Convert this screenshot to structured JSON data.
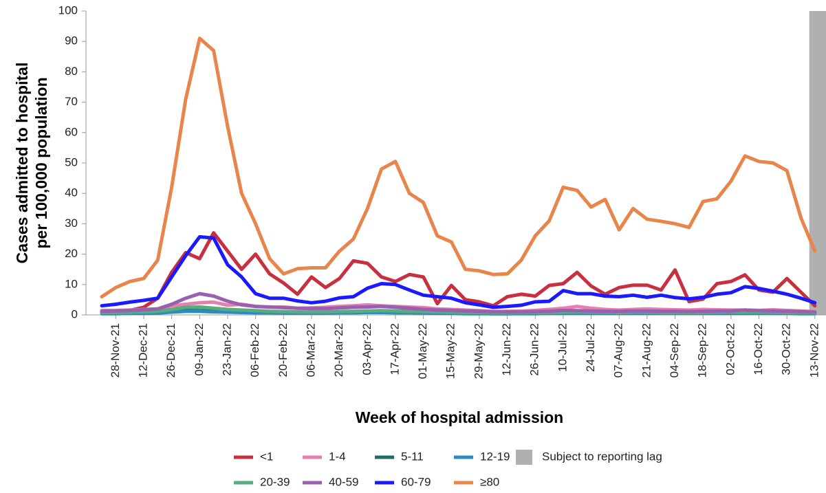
{
  "chart_data": {
    "type": "line",
    "y_label": [
      "Cases admitted to hospital",
      "per 100,000 population"
    ],
    "x_label": "Week of hospital admission",
    "categories": [
      null,
      "28-Nov-21",
      null,
      "12-Dec-21",
      null,
      "26-Dec-21",
      null,
      "09-Jan-22",
      null,
      "23-Jan-22",
      null,
      "06-Feb-22",
      null,
      "20-Feb-22",
      null,
      "06-Mar-22",
      null,
      "20-Mar-22",
      null,
      "03-Apr-22",
      null,
      "17-Apr-22",
      null,
      "01-May-22",
      null,
      "15-May-22",
      null,
      "29-May-22",
      null,
      "12-Jun-22",
      null,
      "26-Jun-22",
      null,
      "10-Jul-22",
      null,
      "24-Jul-22",
      null,
      "07-Aug-22",
      null,
      "21-Aug-22",
      null,
      "04-Sep-22",
      null,
      "18-Sep-22",
      null,
      "02-Oct-22",
      null,
      "16-Oct-22",
      null,
      "30-Oct-22",
      null,
      "13-Nov-22"
    ],
    "ylim": [
      0,
      100
    ],
    "yticks": [
      0,
      10,
      20,
      30,
      40,
      50,
      60,
      70,
      80,
      90,
      100
    ],
    "grid": false,
    "legend": "bottom",
    "shade": {
      "label": "Subject to reporting lag",
      "color": "#b0b0b0"
    },
    "series": [
      {
        "name": "<1",
        "color": "#c8303f",
        "values": [
          1,
          1,
          1.5,
          2.5,
          5.5,
          14,
          20.5,
          18.5,
          27,
          21,
          15,
          20,
          13.5,
          10.5,
          6.8,
          12.5,
          9,
          12,
          17.8,
          17,
          12.5,
          11,
          13.3,
          12.5,
          3.7,
          9.7,
          5,
          4.3,
          3,
          6,
          6.8,
          6.2,
          9.7,
          10.3,
          14,
          9.5,
          6.8,
          9,
          9.8,
          9.8,
          8.2,
          14.8,
          4.4,
          5.2,
          10.3,
          11,
          13.2,
          8.2,
          7.5,
          12,
          7.5,
          3
        ]
      },
      {
        "name": "1-4",
        "color": "#e57fb0",
        "values": [
          1.5,
          1.5,
          1.6,
          1.8,
          2,
          3,
          3.5,
          4,
          4.2,
          3.2,
          3.5,
          2.8,
          2.5,
          2.6,
          2.2,
          2.3,
          2.5,
          2.8,
          3,
          3.3,
          3,
          2.8,
          2.6,
          2.4,
          2,
          1.8,
          1.6,
          1.4,
          1.2,
          1.2,
          1.3,
          1.5,
          1.8,
          2.2,
          2.8,
          2.2,
          1.8,
          1.6,
          1.8,
          2,
          1.8,
          1.7,
          1.6,
          1.8,
          1.7,
          1.6,
          1.6,
          1.5,
          1.7,
          1.5,
          1.3,
          1.1
        ]
      },
      {
        "name": "5-11",
        "color": "#1f6b6b",
        "values": [
          0.5,
          0.5,
          0.6,
          0.6,
          0.7,
          1,
          1.5,
          1.4,
          1.2,
          1,
          1,
          0.9,
          0.8,
          0.8,
          0.7,
          0.7,
          0.8,
          0.8,
          0.9,
          1,
          1,
          1,
          0.8,
          0.7,
          0.6,
          0.6,
          0.5,
          0.5,
          0.4,
          0.4,
          0.5,
          0.5,
          0.6,
          0.6,
          0.7,
          0.6,
          0.6,
          0.6,
          0.6,
          0.6,
          0.6,
          0.6,
          0.6,
          0.6,
          0.6,
          0.6,
          0.6,
          0.6,
          0.6,
          0.6,
          0.5,
          0.5
        ]
      },
      {
        "name": "12-19",
        "color": "#2b8cbe",
        "values": [
          0.4,
          0.4,
          0.5,
          0.5,
          0.6,
          0.9,
          1.2,
          1.2,
          1,
          0.9,
          0.8,
          0.7,
          0.7,
          0.6,
          0.6,
          0.6,
          0.6,
          0.7,
          0.7,
          0.8,
          0.8,
          0.7,
          0.7,
          0.6,
          0.5,
          0.5,
          0.4,
          0.4,
          0.4,
          0.4,
          0.4,
          0.4,
          0.5,
          0.5,
          0.5,
          0.5,
          0.5,
          0.5,
          0.5,
          0.5,
          0.5,
          0.5,
          0.5,
          0.5,
          0.5,
          0.5,
          0.5,
          0.5,
          0.5,
          0.5,
          0.4,
          0.4
        ]
      },
      {
        "name": "20-39",
        "color": "#5aab7f",
        "values": [
          0.8,
          0.8,
          0.9,
          1,
          1.2,
          1.8,
          2.5,
          2.6,
          2.2,
          1.8,
          1.6,
          1.4,
          1.2,
          1.1,
          1,
          1,
          1,
          1.1,
          1.2,
          1.3,
          1.4,
          1.3,
          1.2,
          1.1,
          1,
          0.9,
          0.8,
          0.8,
          0.7,
          0.7,
          0.7,
          0.8,
          0.8,
          0.9,
          1,
          0.9,
          0.9,
          0.8,
          0.9,
          0.9,
          0.8,
          0.8,
          0.8,
          0.8,
          0.9,
          0.9,
          0.9,
          0.9,
          0.9,
          0.8,
          0.8,
          0.7
        ]
      },
      {
        "name": "40-59",
        "color": "#9b5fb0",
        "values": [
          1.2,
          1.3,
          1.5,
          1.7,
          2,
          3.5,
          5.5,
          7,
          6.2,
          4.5,
          3.3,
          2.8,
          2.6,
          2.4,
          2.2,
          2.1,
          2.1,
          2.3,
          2.5,
          2.6,
          2.8,
          2.5,
          2.2,
          1.8,
          1.6,
          1.5,
          1.3,
          1.2,
          1,
          1,
          1,
          1.1,
          1.2,
          1.5,
          1.4,
          1.3,
          1.2,
          1.2,
          1.3,
          1.3,
          1.2,
          1.2,
          1.1,
          1.2,
          1.3,
          1.3,
          1.6,
          1.4,
          1.3,
          1.2,
          1.1,
          0.9
        ]
      },
      {
        "name": "60-79",
        "color": "#1a1aff",
        "values": [
          3,
          3.5,
          4.2,
          4.8,
          5.5,
          12.5,
          19.5,
          25.7,
          25.3,
          16.5,
          12.5,
          7,
          5.5,
          5.5,
          4.6,
          4,
          4.5,
          5.6,
          6,
          8.8,
          10.3,
          10,
          8.2,
          6.5,
          6,
          5.5,
          4,
          3.3,
          2.5,
          2.8,
          3.2,
          4.3,
          4.5,
          8,
          7,
          7,
          6.2,
          6,
          6.5,
          5.8,
          6.5,
          5.7,
          5.3,
          5.8,
          6.8,
          7.3,
          9.3,
          8.7,
          7.8,
          6.8,
          5.5,
          4
        ]
      },
      {
        "name": "≥80",
        "color": "#e8854a",
        "values": [
          6,
          9,
          11,
          12,
          18,
          42,
          71,
          91,
          87,
          62,
          40,
          30,
          18.5,
          13.5,
          15.2,
          15.5,
          15.5,
          21,
          25,
          35,
          48,
          50.5,
          40,
          37,
          26,
          24,
          15,
          14.5,
          13.3,
          13.5,
          18,
          26,
          31,
          42,
          41,
          35.5,
          38,
          28,
          35,
          31.5,
          30.8,
          30,
          28.8,
          37.3,
          38.2,
          44,
          52.3,
          50.5,
          50,
          47.5,
          32,
          21
        ]
      }
    ]
  }
}
